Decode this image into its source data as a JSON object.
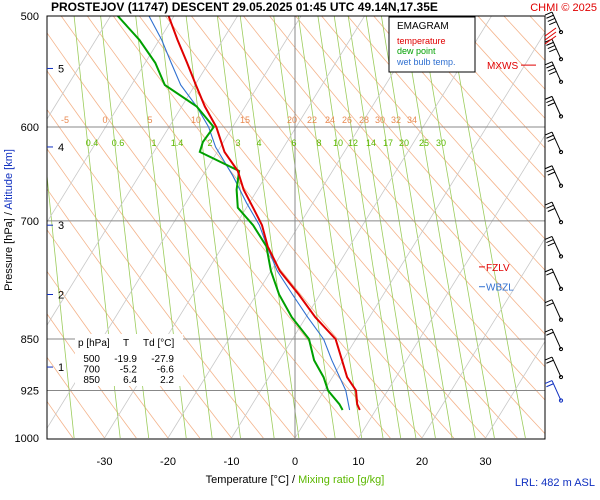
{
  "header": {
    "title": "PROSTEJOV (11747)   DESCENT   29.05.2025 01:45 UTC  49.14N,17.35E",
    "copyright": "CHMI © 2025"
  },
  "legend": {
    "title": "EMAGRAM",
    "items": [
      {
        "label": "temperature",
        "color": "#e00000"
      },
      {
        "label": "dew point",
        "color": "#00a000"
      },
      {
        "label": "wet bulb temp.",
        "color": "#3070d0"
      }
    ]
  },
  "axes": {
    "ylabel_pressure": "Pressure [hPa]",
    "ylabel_sep": "  /  ",
    "ylabel_altitude": "Altitude [km]",
    "xlabel_temperature": "Temperature [°C]",
    "xlabel_sep": "  /  ",
    "xlabel_mixing": "Mixing ratio [g/kg]",
    "pressure_ticks": [
      "500",
      "600",
      "700",
      "850",
      "925",
      "1000"
    ],
    "temperature_ticks": [
      "-30",
      "-20",
      "-10",
      "0",
      "10",
      "20",
      "30"
    ],
    "altitude_ticks": [
      {
        "km": "1",
        "p": 890
      },
      {
        "km": "2",
        "p": 790
      },
      {
        "km": "3",
        "p": 705
      },
      {
        "km": "4",
        "p": 620
      },
      {
        "km": "5",
        "p": 545
      }
    ]
  },
  "levels": {
    "mxws": {
      "label": "MXWS",
      "p": 542
    },
    "fzlv": {
      "label": "FZLV",
      "p": 755
    },
    "wbzl": {
      "label": "WBZL",
      "p": 780
    }
  },
  "table": {
    "headers": [
      "p [hPa]",
      "T",
      "Td [°C]"
    ],
    "rows": [
      [
        "500",
        "-19.9",
        "-27.9"
      ],
      [
        "700",
        "-5.2",
        "-6.6"
      ],
      [
        "850",
        "6.4",
        "2.2"
      ]
    ]
  },
  "footer": {
    "lrl": "LRL: 482 m ASL"
  },
  "chart_data": {
    "type": "line",
    "title": "EMAGRAM",
    "xlabel": "Temperature [°C]  /  Mixing ratio [g/kg]",
    "ylabel": "Pressure [hPa]  /  Altitude [km]",
    "xlim": [
      -39,
      39
    ],
    "ylim": [
      1000,
      500
    ],
    "y_scale": "log",
    "grid": true,
    "dry_adiabat_labels": [
      "-5",
      "0",
      "5",
      "10",
      "15",
      "20",
      "22",
      "24",
      "26",
      "28",
      "30",
      "32",
      "34"
    ],
    "mixing_ratio_labels": [
      "0.4",
      "0.6",
      "1",
      "1.4",
      "2",
      "3",
      "4",
      "6",
      "8",
      "10",
      "12",
      "14",
      "17",
      "20",
      "25",
      "30"
    ],
    "series": [
      {
        "name": "temperature",
        "color": "#e00000",
        "p": [
          955,
          946,
          925,
          905,
          880,
          850,
          820,
          790,
          760,
          730,
          705,
          685,
          665,
          645,
          625,
          600,
          580,
          560,
          540,
          520,
          500
        ],
        "values": [
          10.2,
          9.8,
          9.6,
          8.2,
          7.4,
          6.4,
          3.2,
          0.6,
          -2.4,
          -4.3,
          -5.2,
          -6.6,
          -8.1,
          -9.0,
          -11.1,
          -12.4,
          -14.2,
          -15.6,
          -17.0,
          -18.5,
          -19.9
        ]
      },
      {
        "name": "dew point",
        "color": "#00a000",
        "p": [
          955,
          946,
          925,
          905,
          880,
          850,
          820,
          790,
          760,
          730,
          705,
          685,
          665,
          645,
          625,
          615,
          600,
          580,
          560,
          540,
          520,
          500
        ],
        "values": [
          7.5,
          7.0,
          5.2,
          4.5,
          3.0,
          2.2,
          -0.5,
          -2.5,
          -3.8,
          -4.5,
          -6.6,
          -9.0,
          -9.2,
          -8.8,
          -15.0,
          -14.5,
          -12.8,
          -15.5,
          -20.5,
          -22.0,
          -24.5,
          -27.9
        ]
      },
      {
        "name": "wet bulb temp.",
        "color": "#3070d0",
        "p": [
          955,
          925,
          880,
          850,
          820,
          790,
          760,
          730,
          705,
          680,
          650,
          620,
          600,
          580,
          560,
          540,
          520,
          500
        ],
        "values": [
          8.6,
          8.0,
          5.8,
          4.5,
          2.0,
          -0.4,
          -2.8,
          -4.4,
          -5.6,
          -7.6,
          -9.8,
          -12.5,
          -13.6,
          -15.5,
          -18.0,
          -19.5,
          -21.0,
          -23.0
        ]
      }
    ]
  }
}
